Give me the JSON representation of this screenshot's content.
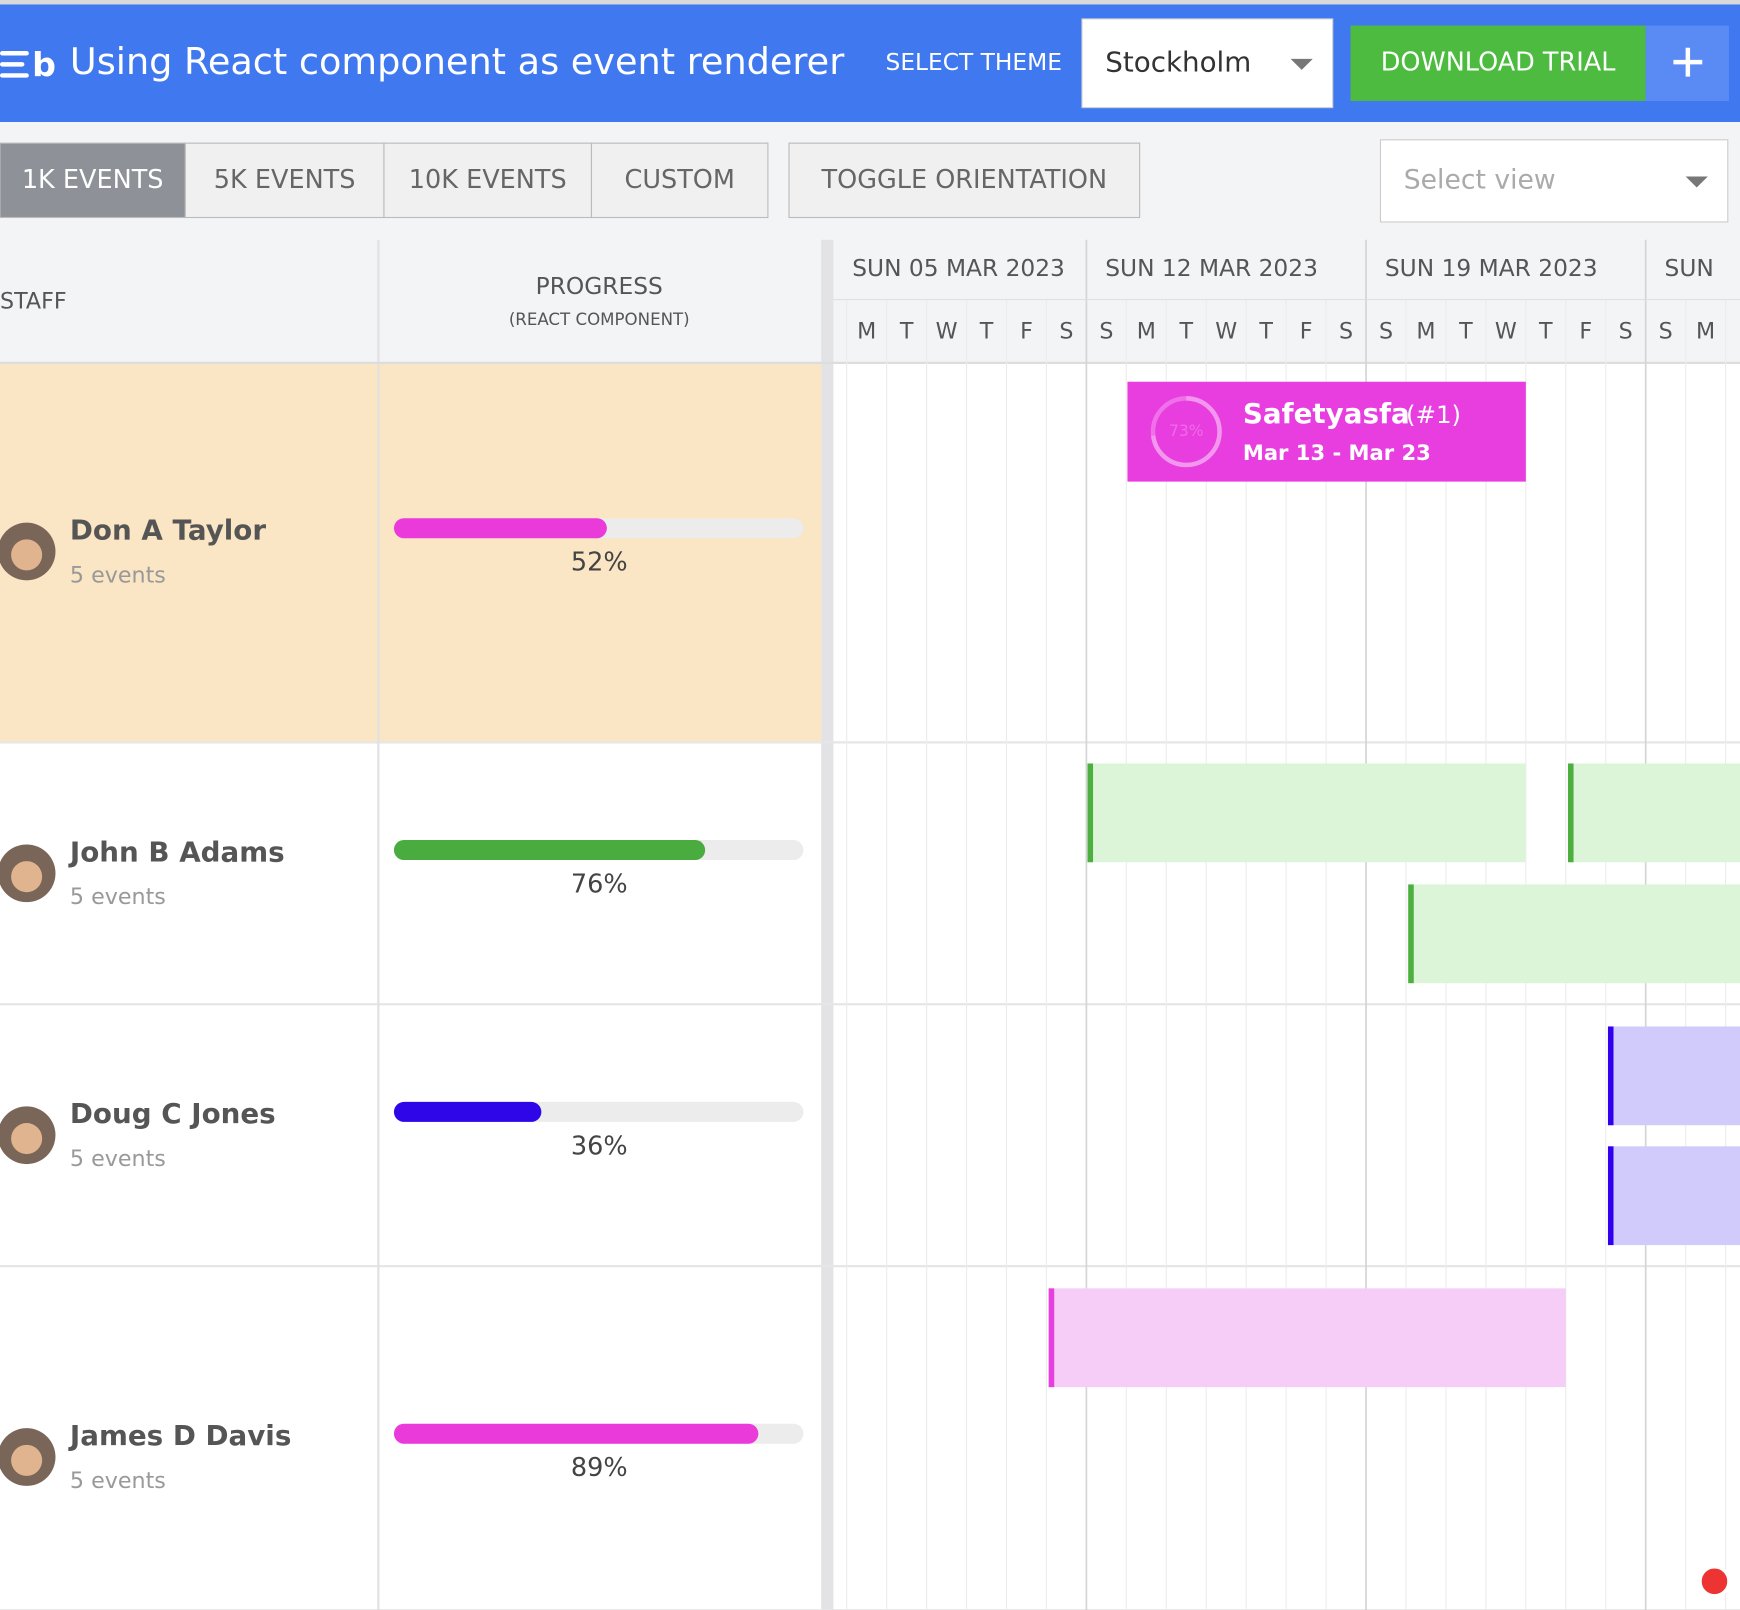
{
  "header": {
    "title": "Using React component as event renderer",
    "theme_label": "SELECT THEME",
    "theme": "Stockholm",
    "download": "DOWNLOAD TRIAL"
  },
  "toolbar": {
    "buttons": [
      "1K EVENTS",
      "5K EVENTS",
      "10K EVENTS",
      "CUSTOM"
    ],
    "toggle": "TOGGLE ORIENTATION",
    "select_view": "Select view"
  },
  "columns": {
    "staff": "STAFF",
    "progress": "PROGRESS",
    "progress_sub": "(REACT COMPONENT)"
  },
  "timeline": {
    "weeks": [
      "SUN 05 MAR 2023",
      "SUN 12 MAR 2023",
      "SUN 19 MAR 2023",
      "SUN"
    ],
    "days": [
      "M",
      "T",
      "W",
      "T",
      "F",
      "S",
      "S",
      "M",
      "T",
      "W",
      "T",
      "F",
      "S",
      "S",
      "M",
      "T",
      "W",
      "T",
      "F",
      "S",
      "S",
      "M"
    ]
  },
  "rows": [
    {
      "name": "Don A Taylor",
      "events": "5 events",
      "progress": 52,
      "progress_label": "52%",
      "color": "#ea3ad9"
    },
    {
      "name": "John B Adams",
      "events": "5 events",
      "progress": 76,
      "progress_label": "76%",
      "color": "#4aac3e"
    },
    {
      "name": "Doug C Jones",
      "events": "5 events",
      "progress": 36,
      "progress_label": "36%",
      "color": "#2e06e8"
    },
    {
      "name": "James D Davis",
      "events": "5 events",
      "progress": 89,
      "progress_label": "89%",
      "color": "#ea3ad9"
    }
  ],
  "event": {
    "name": "Safetyasfa",
    "id": "(#1)",
    "dates": "Mar 13 - Mar 23",
    "percent": 73,
    "percent_label": "73%"
  }
}
